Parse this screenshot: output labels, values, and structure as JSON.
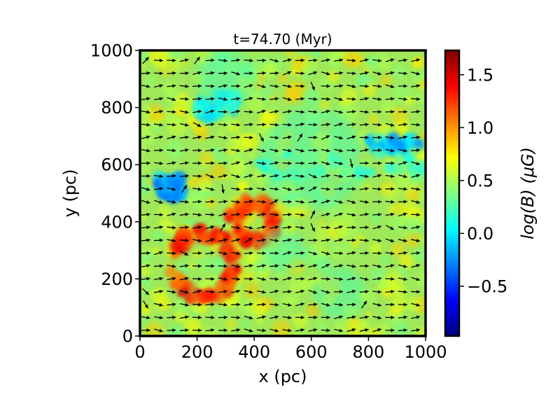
{
  "chart_data": {
    "type": "heatmap",
    "title": "t=74.70 (Myr)",
    "xlabel": "x (pc)",
    "ylabel": "y (pc)",
    "xlim": [
      0,
      1000
    ],
    "ylim": [
      0,
      1000
    ],
    "xticks": [
      "0",
      "200",
      "400",
      "600",
      "800",
      "1000"
    ],
    "yticks": [
      "0",
      "200",
      "400",
      "600",
      "800",
      "1000"
    ],
    "colorbar": {
      "label": "log(B) (μG)",
      "colormap": "jet",
      "range": [
        -0.97,
        1.73
      ],
      "ticks": [
        {
          "value": -0.5,
          "label": "−0.5"
        },
        {
          "value": 0.0,
          "label": "0.0"
        },
        {
          "value": 0.5,
          "label": "0.5"
        },
        {
          "value": 1.0,
          "label": "1.0"
        },
        {
          "value": 1.5,
          "label": "1.5"
        }
      ]
    },
    "field_features": [
      {
        "region": "shell-lower-left",
        "x": [
          0,
          480
        ],
        "y": [
          100,
          480
        ],
        "value": 1.3
      },
      {
        "region": "blue-patch-top",
        "x": [
          200,
          340
        ],
        "y": [
          760,
          860
        ],
        "value": 0.05
      },
      {
        "region": "blue-patch-left",
        "x": [
          60,
          160
        ],
        "y": [
          480,
          560
        ],
        "value": -0.2
      },
      {
        "region": "blue-patch-right",
        "x": [
          800,
          980
        ],
        "y": [
          640,
          700
        ],
        "value": -0.1
      },
      {
        "region": "cyan-band-middle",
        "x": [
          400,
          1000
        ],
        "y": [
          560,
          640
        ],
        "value": 0.2
      },
      {
        "region": "background",
        "x": [
          0,
          1000
        ],
        "y": [
          0,
          1000
        ],
        "value": 0.55
      }
    ],
    "vector_field": {
      "description": "black arrows showing magnetic field direction, predominantly +x",
      "grid_spacing_pc": 45,
      "dominant_direction": "+x"
    }
  }
}
